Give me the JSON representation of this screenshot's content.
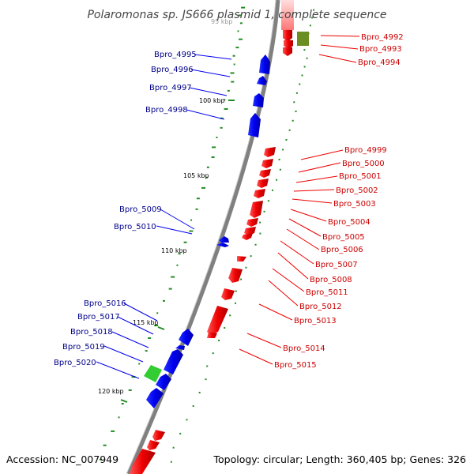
{
  "title": "Polaromonas sp. JS666 plasmid 1, complete sequence",
  "footer": {
    "accession": "Accession: NC_007949",
    "summary": "Topology: circular; Length: 360,405 bp; Genes: 326"
  },
  "ticks": {
    "faint": "95 kbp",
    "t100": "100 kbp",
    "t105": "105 kbp",
    "t110": "110 kbp",
    "t115": "115 kbp",
    "t120": "120 kbp"
  },
  "genes_left": [
    "Bpro_4995",
    "Bpro_4996",
    "Bpro_4997",
    "Bpro_4998",
    "Bpro_5009",
    "Bpro_5010",
    "Bpro_5016",
    "Bpro_5017",
    "Bpro_5018",
    "Bpro_5019",
    "Bpro_5020"
  ],
  "genes_right": [
    "Bpro_4992",
    "Bpro_4993",
    "Bpro_4994",
    "Bpro_4999",
    "Bpro_5000",
    "Bpro_5001",
    "Bpro_5002",
    "Bpro_5003",
    "Bpro_5004",
    "Bpro_5005",
    "Bpro_5006",
    "Bpro_5007",
    "Bpro_5008",
    "Bpro_5011",
    "Bpro_5012",
    "Bpro_5013",
    "Bpro_5014",
    "Bpro_5015"
  ],
  "colors": {
    "forward_gene": "#0000ee",
    "reverse_gene": "#ee0000",
    "rna_green": "#33cc33",
    "olive": "#6b8e23",
    "backbone": "#808080",
    "gc_marks": "#228b22",
    "label_blue": "#00008b",
    "label_red": "#cc0000"
  }
}
